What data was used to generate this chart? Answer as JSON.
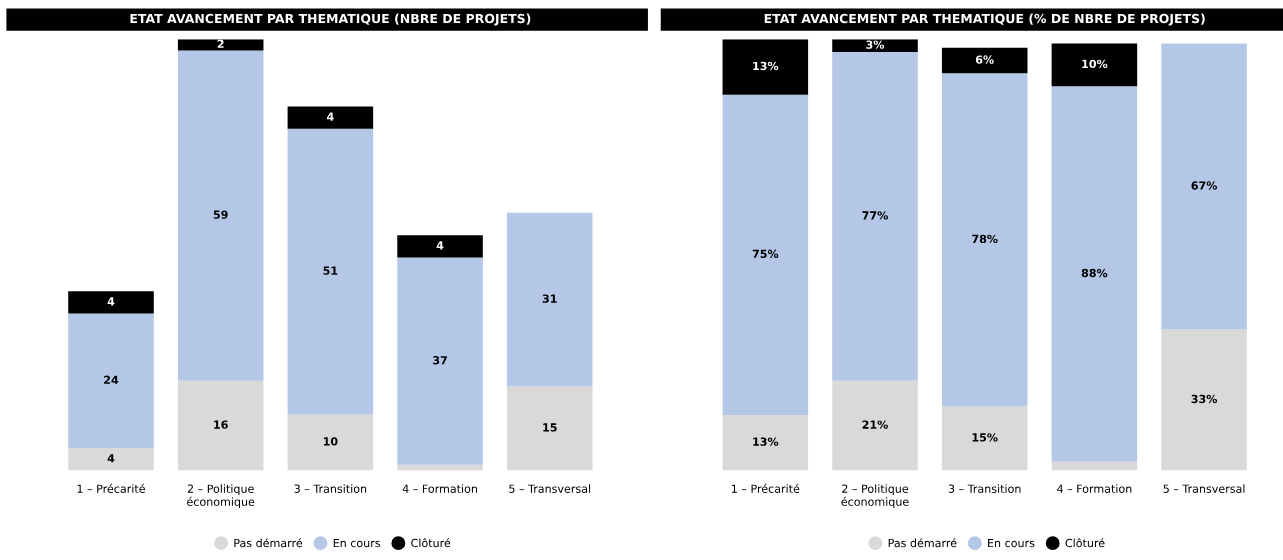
{
  "chart_data": [
    {
      "type": "bar",
      "stacked": true,
      "title": "ETAT AVANCEMENT PAR THEMATIQUE (NBRE DE PROJETS)",
      "categories": [
        "1 – Précarité",
        "2 – Politique\néconomique",
        "3 – Transition",
        "4 – Formation",
        "5 – Transversal"
      ],
      "legend": "bottom",
      "grid": false,
      "series": [
        {
          "name": "Pas démarré",
          "color": "#d9d9d9",
          "values": [
            4,
            16,
            10,
            1,
            15
          ],
          "value_labels": [
            "4",
            "16",
            "10",
            null,
            "15"
          ]
        },
        {
          "name": "En cours",
          "color": "#b4c7e7",
          "values": [
            24,
            59,
            51,
            37,
            31
          ],
          "value_labels": [
            "24",
            "59",
            "51",
            "37",
            "31"
          ]
        },
        {
          "name": "Clôturé",
          "color": "#000000",
          "values": [
            4,
            2,
            4,
            4,
            0
          ],
          "value_labels": [
            "4",
            "2",
            "4",
            "4",
            null
          ]
        }
      ]
    },
    {
      "type": "bar",
      "stacked": true,
      "title": "ETAT AVANCEMENT PAR THEMATIQUE (% DE NBRE DE PROJETS)",
      "categories": [
        "1 – Précarité",
        "2 – Politique\néconomique",
        "3 – Transition",
        "4 – Formation",
        "5 – Transversal"
      ],
      "legend": "bottom",
      "grid": false,
      "series": [
        {
          "name": "Pas démarré",
          "color": "#d9d9d9",
          "values": [
            13,
            21,
            15,
            2,
            33
          ],
          "value_labels": [
            "13%",
            "21%",
            "15%",
            null,
            "33%"
          ]
        },
        {
          "name": "En cours",
          "color": "#b4c7e7",
          "values": [
            75,
            77,
            78,
            88,
            67
          ],
          "value_labels": [
            "75%",
            "77%",
            "78%",
            "88%",
            "67%"
          ]
        },
        {
          "name": "Clôturé",
          "color": "#000000",
          "values": [
            13,
            3,
            6,
            10,
            0
          ],
          "value_labels": [
            "13%",
            "3%",
            "6%",
            "10%",
            null
          ]
        }
      ]
    }
  ]
}
